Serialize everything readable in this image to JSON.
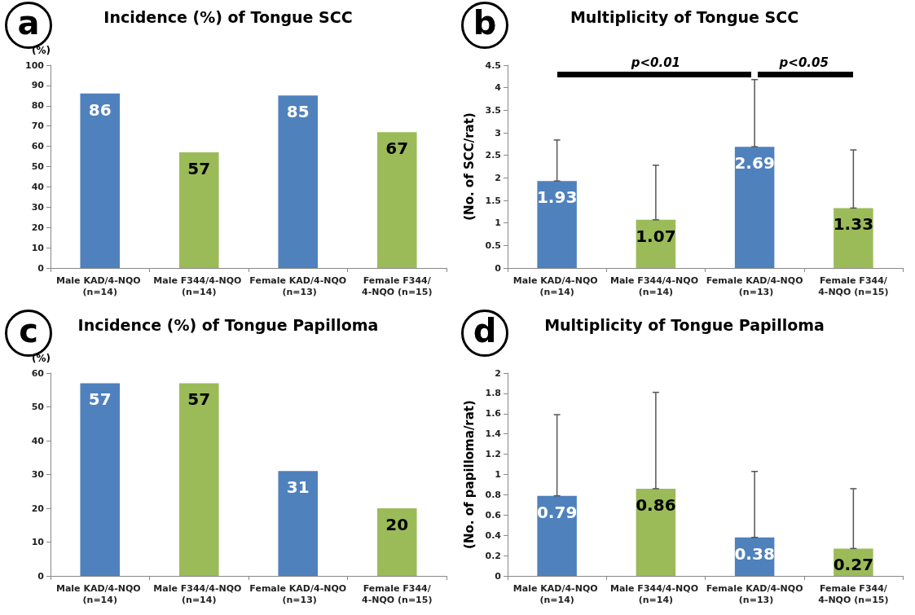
{
  "chart_data": [
    {
      "type": "bar",
      "title": "Incidence (%) of Tongue SCC",
      "ylabel": "(%)",
      "annotations": [
        "a"
      ],
      "categories": [
        "Male KAD/4-NQO (n=14)",
        "Male F344/4-NQO (n=14)",
        "Female KAD/4-NQO (n=13)",
        "Female F344/4-NQO (n=15)"
      ],
      "values": [
        86,
        57,
        85,
        67
      ],
      "colors": [
        "#4f81bd",
        "#9bbb59",
        "#4f81bd",
        "#9bbb59"
      ],
      "ylim": [
        0,
        100
      ],
      "yticks": [
        0,
        10,
        20,
        30,
        40,
        50,
        60,
        70,
        80,
        90,
        100
      ],
      "data_labels": true
    },
    {
      "type": "bar",
      "title": "Multiplicity of Tongue SCC",
      "ylabel": "(No. of SCC/rat)",
      "annotations": [
        "b",
        "p<0.01",
        "p<0.05"
      ],
      "categories": [
        "Male KAD/4-NQO (n=14)",
        "Male F344/4-NQO (n=14)",
        "Female KAD/4-NQO (n=13)",
        "Female F344/4-NQO (n=15)"
      ],
      "values": [
        1.93,
        1.07,
        2.69,
        1.33
      ],
      "errors": [
        [
          1.93,
          2.84
        ],
        [
          1.07,
          2.28
        ],
        [
          2.69,
          4.18
        ],
        [
          1.33,
          2.62
        ]
      ],
      "colors": [
        "#4f81bd",
        "#9bbb59",
        "#4f81bd",
        "#9bbb59"
      ],
      "ylim": [
        0,
        4.5
      ],
      "yticks": [
        0,
        0.5,
        1,
        1.5,
        2,
        2.5,
        3,
        3.5,
        4,
        4.5
      ],
      "data_labels": true
    },
    {
      "type": "bar",
      "title": "Incidence (%) of Tongue Papilloma",
      "ylabel": "(%)",
      "annotations": [
        "c"
      ],
      "categories": [
        "Male KAD/4-NQO (n=14)",
        "Male F344/4-NQO (n=14)",
        "Female KAD/4-NQO (n=13)",
        "Female F344/4-NQO (n=15)"
      ],
      "values": [
        57,
        57,
        31,
        20
      ],
      "colors": [
        "#4f81bd",
        "#9bbb59",
        "#4f81bd",
        "#9bbb59"
      ],
      "ylim": [
        0,
        60
      ],
      "yticks": [
        0,
        10,
        20,
        30,
        40,
        50,
        60
      ],
      "data_labels": true
    },
    {
      "type": "bar",
      "title": "Multiplicity of Tongue Papilloma",
      "ylabel": "(No. of papilloma/rat)",
      "annotations": [
        "d"
      ],
      "categories": [
        "Male KAD/4-NQO (n=14)",
        "Male F344/4-NQO (n=14)",
        "Female KAD/4-NQO (n=13)",
        "Female F344/4-NQO (n=15)"
      ],
      "values": [
        0.79,
        0.86,
        0.38,
        0.27
      ],
      "errors": [
        [
          0.79,
          1.59
        ],
        [
          0.86,
          1.81
        ],
        [
          0.38,
          1.03
        ],
        [
          0.27,
          0.86
        ]
      ],
      "colors": [
        "#4f81bd",
        "#9bbb59",
        "#4f81bd",
        "#9bbb59"
      ],
      "ylim": [
        0,
        2
      ],
      "yticks": [
        0,
        0.2,
        0.4,
        0.6,
        0.8,
        1,
        1.2,
        1.4,
        1.6,
        1.8,
        2
      ],
      "data_labels": true
    }
  ]
}
